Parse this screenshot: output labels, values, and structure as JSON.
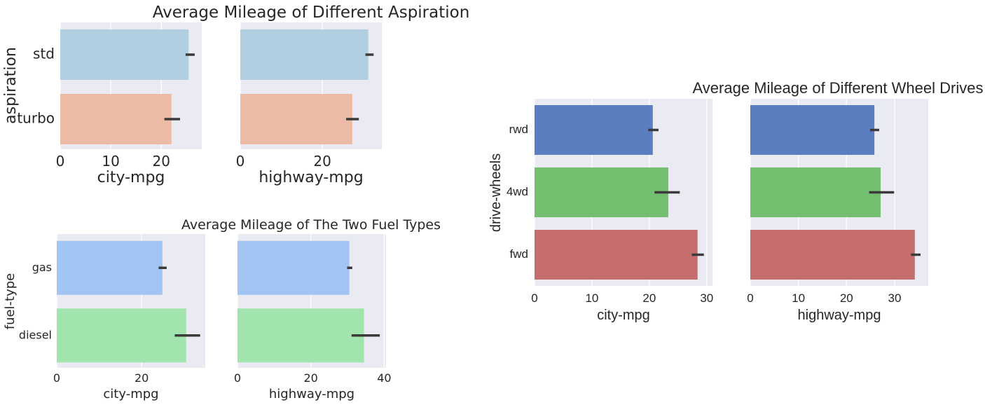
{
  "chart_data": [
    {
      "id": "asp",
      "type": "bar",
      "orientation": "horizontal",
      "title": "Average Mileage of Different Aspiration",
      "ylabel": "aspiration",
      "categories": [
        "std",
        "turbo"
      ],
      "colors": [
        "#b0cfe0",
        "#ecbba6"
      ],
      "panels": [
        {
          "xlabel": "city-mpg",
          "xlim": [
            0,
            28
          ],
          "xticks": [
            0,
            10,
            20
          ],
          "values": [
            25.4,
            22.0
          ],
          "ci": [
            [
              24.8,
              26.6
            ],
            [
              20.6,
              23.7
            ]
          ]
        },
        {
          "xlabel": "highway-mpg",
          "xlim": [
            0,
            34.5
          ],
          "xticks": [
            0,
            20
          ],
          "values": [
            31.2,
            27.3
          ],
          "ci": [
            [
              30.5,
              32.5
            ],
            [
              25.8,
              28.9
            ]
          ]
        }
      ]
    },
    {
      "id": "fuel",
      "type": "bar",
      "orientation": "horizontal",
      "title": "Average Mileage of The Two Fuel Types",
      "ylabel": "fuel-type",
      "categories": [
        "gas",
        "diesel"
      ],
      "colors": [
        "#a1c4f2",
        "#a2e4ae"
      ],
      "panels": [
        {
          "xlabel": "city-mpg",
          "xlim": [
            0,
            35
          ],
          "xticks": [
            0,
            20
          ],
          "values": [
            24.9,
            30.5
          ],
          "ci": [
            [
              24.0,
              25.9
            ],
            [
              27.8,
              33.8
            ]
          ]
        },
        {
          "xlabel": "highway-mpg",
          "xlim": [
            0,
            40.5
          ],
          "xticks": [
            0,
            20,
            40
          ],
          "values": [
            30.5,
            34.5
          ],
          "ci": [
            [
              29.9,
              31.3
            ],
            [
              31.1,
              38.8
            ]
          ]
        }
      ]
    },
    {
      "id": "wheels",
      "type": "bar",
      "orientation": "horizontal",
      "title": "Average Mileage of Different Wheel Drives",
      "ylabel": "drive-wheels",
      "categories": [
        "rwd",
        "4wd",
        "fwd"
      ],
      "colors": [
        "#5a7ec0",
        "#74bf6f",
        "#c56c6c"
      ],
      "panels": [
        {
          "xlabel": "city-mpg",
          "xlim": [
            0,
            31
          ],
          "xticks": [
            0,
            10,
            20,
            30
          ],
          "values": [
            20.6,
            23.3,
            28.4
          ],
          "ci": [
            [
              19.8,
              21.6
            ],
            [
              20.9,
              25.3
            ],
            [
              27.4,
              29.5
            ]
          ]
        },
        {
          "xlabel": "highway-mpg",
          "xlim": [
            0,
            37
          ],
          "xticks": [
            0,
            10,
            20,
            30
          ],
          "values": [
            25.8,
            27.1,
            34.2
          ],
          "ci": [
            [
              24.9,
              26.8
            ],
            [
              24.7,
              29.9
            ],
            [
              33.4,
              35.4
            ]
          ]
        }
      ]
    }
  ]
}
